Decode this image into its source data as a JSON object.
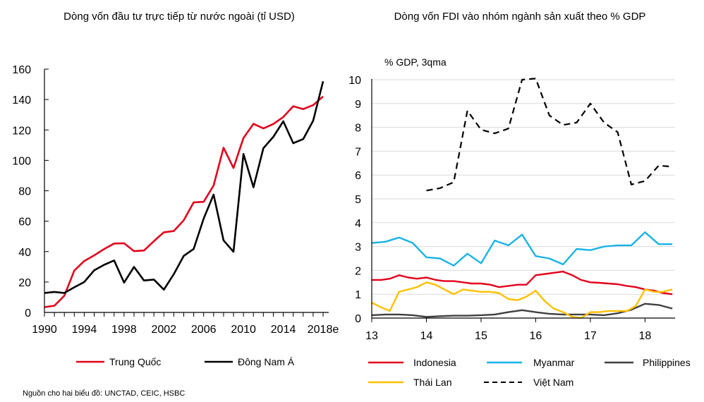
{
  "source_note": "Nguồn cho hai biểu đồ: UNCTAD, CEIC, HSBC",
  "chart_data": [
    {
      "type": "line",
      "title": "Dòng vốn đầu tư trực tiếp từ nước ngoài (tỉ USD)",
      "xlabel": "",
      "ylabel": "",
      "ylim": [
        0,
        160
      ],
      "xlim": [
        1990,
        2018
      ],
      "y_ticks": [
        "0",
        "20",
        "40",
        "60",
        "80",
        "100",
        "120",
        "140",
        "160"
      ],
      "x_ticks": [
        {
          "x": 1990,
          "label": "1990"
        },
        {
          "x": 1994,
          "label": "1994"
        },
        {
          "x": 1998,
          "label": "1998"
        },
        {
          "x": 2002,
          "label": "2002"
        },
        {
          "x": 2006,
          "label": "2006"
        },
        {
          "x": 2010,
          "label": "2010"
        },
        {
          "x": 2014,
          "label": "2014"
        },
        {
          "x": 2018,
          "label": "2018e"
        }
      ],
      "x": [
        1990,
        1991,
        1992,
        1993,
        1994,
        1995,
        1996,
        1997,
        1998,
        1999,
        2000,
        2001,
        2002,
        2003,
        2004,
        2005,
        2006,
        2007,
        2008,
        2009,
        2010,
        2011,
        2012,
        2013,
        2014,
        2015,
        2016,
        2017,
        2018
      ],
      "series": [
        {
          "name": "Trung Quốc",
          "color": "#e3001b",
          "style": "solid",
          "values": [
            3.5,
            4.4,
            11,
            27.5,
            33.8,
            37.5,
            41.7,
            45.3,
            45.5,
            40.3,
            40.7,
            46.9,
            52.7,
            53.5,
            60.6,
            72.4,
            72.7,
            83.5,
            108.3,
            95,
            114.7,
            124,
            121,
            123.9,
            128.5,
            135.6,
            133.7,
            136.3,
            142
          ]
        },
        {
          "name": "Đông Nam Á",
          "color": "#000000",
          "style": "solid",
          "values": [
            12.8,
            13.5,
            12.8,
            16.5,
            20,
            27.7,
            31.3,
            34.2,
            19.6,
            29.9,
            21,
            21.6,
            15,
            25.2,
            37.2,
            41.8,
            61.7,
            77.5,
            47.4,
            39.9,
            104.2,
            82.3,
            108,
            115.5,
            125.7,
            111.3,
            114,
            126,
            152
          ]
        }
      ],
      "legend_position": "bottom",
      "grid": false
    },
    {
      "type": "line",
      "title": "Dòng vốn FDI vào nhóm ngành sản xuất theo % GDP",
      "ylabel": "% GDP, 3qma",
      "xlabel": "",
      "ylim": [
        0,
        10
      ],
      "xlim": [
        2013,
        2018.55
      ],
      "y_ticks": [
        "0",
        "1",
        "2",
        "3",
        "4",
        "5",
        "6",
        "7",
        "8",
        "9",
        "10"
      ],
      "x_ticks": [
        {
          "x": 2013,
          "label": "13"
        },
        {
          "x": 2014,
          "label": "14"
        },
        {
          "x": 2015,
          "label": "15"
        },
        {
          "x": 2016,
          "label": "16"
        },
        {
          "x": 2017,
          "label": "17"
        },
        {
          "x": 2018,
          "label": "18"
        }
      ],
      "series": [
        {
          "name": "Indonesia",
          "color": "#e3001b",
          "style": "solid",
          "x": [
            2013,
            2013.17,
            2013.33,
            2013.5,
            2013.67,
            2013.83,
            2014,
            2014.17,
            2014.33,
            2014.5,
            2014.67,
            2014.83,
            2015,
            2015.17,
            2015.33,
            2015.5,
            2015.67,
            2015.83,
            2016,
            2016.17,
            2016.33,
            2016.5,
            2016.67,
            2016.83,
            2017,
            2017.17,
            2017.33,
            2017.5,
            2017.67,
            2017.83,
            2018,
            2018.17,
            2018.33,
            2018.5
          ],
          "values": [
            1.6,
            1.6,
            1.65,
            1.8,
            1.7,
            1.65,
            1.7,
            1.6,
            1.55,
            1.55,
            1.5,
            1.45,
            1.45,
            1.4,
            1.3,
            1.35,
            1.4,
            1.4,
            1.8,
            1.85,
            1.9,
            1.95,
            1.8,
            1.6,
            1.5,
            1.48,
            1.45,
            1.42,
            1.35,
            1.3,
            1.2,
            1.15,
            1.05,
            1.0
          ]
        },
        {
          "name": "Myanmar",
          "color": "#19b3e6",
          "style": "solid",
          "x": [
            2013,
            2013.25,
            2013.5,
            2013.75,
            2014,
            2014.25,
            2014.5,
            2014.75,
            2015,
            2015.25,
            2015.5,
            2015.75,
            2016,
            2016.25,
            2016.5,
            2016.75,
            2017,
            2017.25,
            2017.5,
            2017.75,
            2018,
            2018.25,
            2018.5
          ],
          "values": [
            3.15,
            3.2,
            3.38,
            3.15,
            2.55,
            2.5,
            2.2,
            2.7,
            2.3,
            3.25,
            3.05,
            3.5,
            2.6,
            2.5,
            2.25,
            2.9,
            2.85,
            3.0,
            3.05,
            3.05,
            3.6,
            3.1,
            3.1
          ]
        },
        {
          "name": "Philippines",
          "color": "#404040",
          "style": "solid",
          "x": [
            2013,
            2013.25,
            2013.5,
            2013.75,
            2014,
            2014.25,
            2014.5,
            2014.75,
            2015,
            2015.25,
            2015.5,
            2015.75,
            2016,
            2016.25,
            2016.5,
            2016.75,
            2017,
            2017.25,
            2017.5,
            2017.75,
            2018,
            2018.25,
            2018.5
          ],
          "values": [
            0.12,
            0.15,
            0.15,
            0.12,
            0.05,
            0.08,
            0.1,
            0.1,
            0.12,
            0.15,
            0.25,
            0.33,
            0.25,
            0.18,
            0.15,
            0.15,
            0.15,
            0.12,
            0.2,
            0.35,
            0.6,
            0.55,
            0.4
          ]
        },
        {
          "name": "Thái Lan",
          "color": "#ffc000",
          "style": "solid",
          "x": [
            2013,
            2013.17,
            2013.33,
            2013.5,
            2013.67,
            2013.83,
            2014,
            2014.17,
            2014.33,
            2014.5,
            2014.67,
            2014.83,
            2015,
            2015.17,
            2015.33,
            2015.5,
            2015.67,
            2015.83,
            2016,
            2016.17,
            2016.33,
            2016.5,
            2016.67,
            2016.83,
            2017,
            2017.17,
            2017.33,
            2017.5,
            2017.67,
            2017.83,
            2018,
            2018.17,
            2018.33,
            2018.5
          ],
          "values": [
            0.65,
            0.45,
            0.3,
            1.1,
            1.2,
            1.3,
            1.5,
            1.4,
            1.2,
            1.0,
            1.2,
            1.15,
            1.1,
            1.1,
            1.05,
            0.8,
            0.75,
            0.9,
            1.15,
            0.7,
            0.4,
            0.25,
            0.05,
            0.0,
            0.25,
            0.25,
            0.3,
            0.3,
            0.3,
            0.5,
            1.2,
            1.1,
            1.1,
            1.2
          ]
        },
        {
          "name": "Việt Nam",
          "color": "#000000",
          "style": "dashed",
          "x": [
            2014,
            2014.25,
            2014.5,
            2014.75,
            2015,
            2015.25,
            2015.5,
            2015.75,
            2016,
            2016.25,
            2016.5,
            2016.75,
            2017,
            2017.25,
            2017.5,
            2017.75,
            2018,
            2018.25,
            2018.5
          ],
          "values": [
            5.35,
            5.45,
            5.7,
            8.7,
            7.9,
            7.75,
            7.95,
            10.0,
            10.05,
            8.5,
            8.1,
            8.2,
            9.0,
            8.2,
            7.8,
            5.6,
            5.75,
            6.4,
            6.35
          ]
        }
      ],
      "legend_position": "bottom",
      "grid": true
    }
  ]
}
